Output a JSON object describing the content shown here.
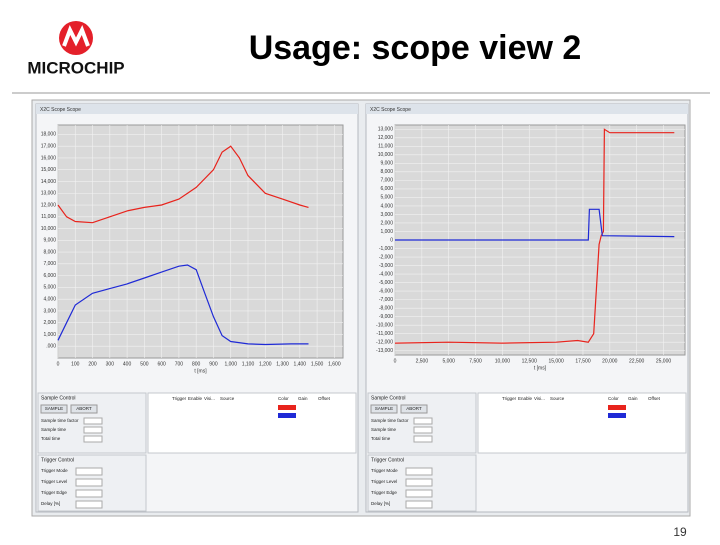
{
  "header": {
    "title": "Usage: scope view 2",
    "logo": "MICROCHIP"
  },
  "page_number": "19",
  "charts": [
    {
      "type": "line",
      "window_title": "X2C Scope Scope",
      "x_label": "t [ms]",
      "xlim": [
        0,
        1650
      ],
      "ylim": [
        -1000,
        18800
      ],
      "grid": true,
      "xticks": [
        0,
        100,
        200,
        300,
        400,
        500,
        600,
        700,
        800,
        900,
        {
          "value": 1000,
          "label": "1,000"
        },
        {
          "value": 1100,
          "label": "1,100"
        },
        {
          "value": 1200,
          "label": "1,200"
        },
        {
          "value": 1300,
          "label": "1,300"
        },
        {
          "value": 1400,
          "label": "1,400"
        },
        {
          "value": 1500,
          "label": "1,500"
        },
        {
          "value": 1600,
          "label": "1,600"
        }
      ],
      "yticks": [
        {
          "value": 18000,
          "label": "18,000"
        },
        {
          "value": 17000,
          "label": "17,000"
        },
        {
          "value": 16000,
          "label": "16,000"
        },
        {
          "value": 15000,
          "label": "15,000"
        },
        {
          "value": 14000,
          "label": "14,000"
        },
        {
          "value": 13000,
          "label": "13,000"
        },
        {
          "value": 12000,
          "label": "12,000"
        },
        {
          "value": 11000,
          "label": "11,000"
        },
        {
          "value": 10000,
          "label": "10,000"
        },
        {
          "value": 9000,
          "label": "9,000"
        },
        {
          "value": 8000,
          "label": "8,000"
        },
        {
          "value": 7000,
          "label": "7,000"
        },
        {
          "value": 6000,
          "label": "6,000"
        },
        {
          "value": 5000,
          "label": "5,000"
        },
        {
          "value": 4000,
          "label": "4,000"
        },
        {
          "value": 3000,
          "label": "3,000"
        },
        {
          "value": 2000,
          "label": "2,000"
        },
        {
          "value": 1000,
          "label": "1,000"
        },
        {
          "value": 0,
          "label": ".000"
        }
      ],
      "series": [
        {
          "color": "#e8231c",
          "x": [
            0,
            50,
            100,
            200,
            300,
            400,
            500,
            600,
            700,
            800,
            900,
            950,
            1000,
            1050,
            1100,
            1200,
            1300,
            1400,
            1450
          ],
          "values": [
            12000,
            11000,
            10600,
            10500,
            11000,
            11500,
            11800,
            12000,
            12500,
            13500,
            15000,
            16500,
            17000,
            16000,
            14500,
            13000,
            12500,
            12000,
            11800
          ]
        },
        {
          "color": "#1f2ad6",
          "x": [
            0,
            50,
            100,
            200,
            300,
            400,
            500,
            600,
            700,
            750,
            800,
            850,
            900,
            950,
            1000,
            1100,
            1200,
            1350,
            1450
          ],
          "values": [
            500,
            2000,
            3500,
            4500,
            4900,
            5300,
            5800,
            6300,
            6800,
            6900,
            6500,
            4500,
            2500,
            900,
            400,
            200,
            150,
            200,
            200
          ]
        }
      ],
      "panel": {
        "sample_control": "Sample Control",
        "buttons": [
          "SAMPLE",
          "ABORT"
        ],
        "fields": [
          "Sample time factor",
          "Sample time",
          "Total time"
        ],
        "columns": [
          "Trigger",
          "Enable",
          "Visi...",
          "Source",
          "Color",
          "Gain",
          "Offset"
        ],
        "trigger_control": "Trigger Control",
        "trigger_fields": [
          "Trigger Mode",
          "Trigger Level",
          "Trigger Edge",
          "Delay [%]"
        ]
      }
    },
    {
      "type": "line",
      "window_title": "X2C Scope Scope",
      "x_label": "t [ms]",
      "xlim": [
        0,
        27000
      ],
      "ylim": [
        -13500,
        13500
      ],
      "grid": true,
      "xticks": [
        0,
        {
          "value": 2500,
          "label": "2,500"
        },
        {
          "value": 5000,
          "label": "5,000"
        },
        {
          "value": 7500,
          "label": "7,500"
        },
        {
          "value": 10000,
          "label": "10,000"
        },
        {
          "value": 12500,
          "label": "12,500"
        },
        {
          "value": 15000,
          "label": "15,000"
        },
        {
          "value": 17500,
          "label": "17,500"
        },
        {
          "value": 20000,
          "label": "20,000"
        },
        {
          "value": 22500,
          "label": "22,500"
        },
        {
          "value": 25000,
          "label": "25,000"
        }
      ],
      "yticks": [
        {
          "value": 13000,
          "label": "13,000"
        },
        {
          "value": 12000,
          "label": "12,000"
        },
        {
          "value": 11000,
          "label": "11,000"
        },
        {
          "value": 10000,
          "label": "10,000"
        },
        {
          "value": 9000,
          "label": "9,000"
        },
        {
          "value": 8000,
          "label": "8,000"
        },
        {
          "value": 7000,
          "label": "7,000"
        },
        {
          "value": 6000,
          "label": "6,000"
        },
        {
          "value": 5000,
          "label": "5,000"
        },
        {
          "value": 4000,
          "label": "4,000"
        },
        {
          "value": 3000,
          "label": "3,000"
        },
        {
          "value": 2000,
          "label": "2,000"
        },
        {
          "value": 1000,
          "label": "1,000"
        },
        0,
        {
          "value": -1000,
          "label": "-1,000"
        },
        {
          "value": -2000,
          "label": "-2,000"
        },
        {
          "value": -3000,
          "label": "-3,000"
        },
        {
          "value": -4000,
          "label": "-4,000"
        },
        {
          "value": -5000,
          "label": "-5,000"
        },
        {
          "value": -6000,
          "label": "-6,000"
        },
        {
          "value": -7000,
          "label": "-7,000"
        },
        {
          "value": -8000,
          "label": "-8,000"
        },
        {
          "value": -9000,
          "label": "-9,000"
        },
        {
          "value": -10000,
          "label": "-10,000"
        },
        {
          "value": -11000,
          "label": "-11,000"
        },
        {
          "value": -12000,
          "label": "-12,000"
        },
        {
          "value": -13000,
          "label": "-13,000"
        }
      ],
      "series": [
        {
          "color": "#e8231c",
          "x": [
            0,
            5000,
            10000,
            15000,
            17000,
            18000,
            18500,
            19000,
            19200,
            19400,
            19500,
            20000,
            25000,
            26000
          ],
          "values": [
            -12100,
            -12000,
            -12100,
            -12000,
            -11800,
            -12000,
            -11000,
            -500,
            500,
            1000,
            13000,
            12600,
            12600,
            12600
          ]
        },
        {
          "color": "#1f2ad6",
          "x": [
            0,
            17500,
            18000,
            18100,
            19000,
            19300,
            26000
          ],
          "values": [
            0,
            0,
            0,
            3600,
            3600,
            500,
            400
          ]
        }
      ],
      "panel": {
        "sample_control": "Sample Control",
        "buttons": [
          "SAMPLE",
          "ABORT"
        ],
        "fields": [
          "Sample time factor",
          "Sample time",
          "Total time"
        ],
        "columns": [
          "Trigger",
          "Enable",
          "Visi...",
          "Source",
          "Color",
          "Gain",
          "Offset"
        ],
        "trigger_control": "Trigger Control",
        "trigger_fields": [
          "Trigger Mode",
          "Trigger Level",
          "Trigger Edge",
          "Delay [%]"
        ]
      }
    }
  ]
}
